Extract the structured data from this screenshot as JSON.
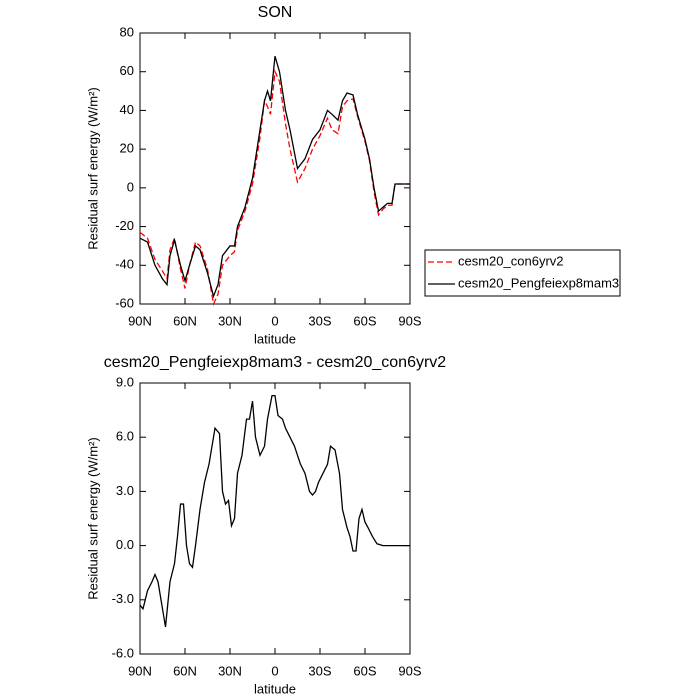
{
  "chart_data": [
    {
      "type": "line",
      "title": "SON",
      "x_label": "latitude",
      "y_label": "Residual surf energy (W/m²)",
      "x": [
        90,
        85,
        80,
        75,
        72,
        70,
        67,
        63,
        60,
        57,
        53,
        50,
        45,
        41,
        38,
        35,
        30,
        27,
        25,
        20,
        15,
        10,
        7,
        5,
        3,
        0,
        -3,
        -7,
        -10,
        -15,
        -20,
        -25,
        -30,
        -35,
        -38,
        -42,
        -45,
        -48,
        -52,
        -55,
        -60,
        -63,
        -66,
        -69,
        -72,
        -75,
        -78,
        -80,
        -85,
        -90
      ],
      "xlim": [
        90,
        -90
      ],
      "xticks": [
        {
          "value": 90,
          "label": "90N"
        },
        {
          "value": 60,
          "label": "60N"
        },
        {
          "value": 30,
          "label": "30N"
        },
        0,
        {
          "value": -30,
          "label": "30S"
        },
        {
          "value": -60,
          "label": "60S"
        },
        {
          "value": -90,
          "label": "90S"
        }
      ],
      "ylim": [
        -60,
        80
      ],
      "yticks": [
        -60,
        -40,
        -20,
        0,
        20,
        40,
        60,
        80
      ],
      "legend": "right",
      "series": [
        {
          "name": "cesm20_con6yrv2",
          "color": "#ff0000",
          "line_style": "dashed",
          "values": [
            -23,
            -26,
            -37,
            -43,
            -47,
            -32,
            -26,
            -42,
            -52,
            -40,
            -28,
            -30,
            -42,
            -60,
            -55,
            -40,
            -35,
            -33,
            -22,
            -12,
            2,
            26,
            45,
            42,
            38,
            60,
            55,
            33,
            20,
            3,
            10,
            20,
            27,
            36,
            30,
            28,
            42,
            45,
            46,
            37,
            24,
            14,
            -2,
            -14,
            -11,
            -9,
            -9,
            2,
            2,
            2
          ]
        },
        {
          "name": "cesm20_Pengfeiexp8mam3",
          "color": "#000000",
          "line_style": "solid",
          "values": [
            -26,
            -28,
            -40,
            -47,
            -50,
            -35,
            -27,
            -40,
            -48,
            -40,
            -30,
            -32,
            -44,
            -56,
            -50,
            -35,
            -30,
            -30,
            -20,
            -10,
            5,
            30,
            45,
            50,
            45,
            68,
            60,
            40,
            30,
            10,
            15,
            25,
            30,
            40,
            38,
            35,
            45,
            49,
            48,
            38,
            25,
            15,
            0,
            -12,
            -10,
            -8,
            -8,
            2,
            2,
            2
          ]
        }
      ]
    },
    {
      "type": "line",
      "title": "cesm20_Pengfeiexp8mam3 - cesm20_con6yrv2",
      "x_label": "latitude",
      "y_label": "Residual surf energy (W/m²)",
      "x": [
        90,
        88,
        85,
        82,
        80,
        78,
        75,
        73,
        70,
        67,
        65,
        63,
        61,
        59,
        57,
        55,
        53,
        50,
        47,
        44,
        40,
        37,
        35,
        33,
        31,
        29,
        27,
        25,
        22,
        19,
        17,
        15,
        13,
        10,
        7,
        5,
        2,
        0,
        -2,
        -5,
        -7,
        -10,
        -13,
        -15,
        -17,
        -20,
        -23,
        -25,
        -27,
        -29,
        -32,
        -35,
        -37,
        -40,
        -43,
        -45,
        -48,
        -50,
        -52,
        -54,
        -56,
        -58,
        -60,
        -62,
        -65,
        -68,
        -72,
        -76,
        -80,
        -85,
        -90
      ],
      "xlim": [
        90,
        -90
      ],
      "xticks": [
        {
          "value": 90,
          "label": "90N"
        },
        {
          "value": 60,
          "label": "60N"
        },
        {
          "value": 30,
          "label": "30N"
        },
        0,
        {
          "value": -30,
          "label": "30S"
        },
        {
          "value": -60,
          "label": "60S"
        },
        {
          "value": -90,
          "label": "90S"
        }
      ],
      "ylim": [
        -6,
        9
      ],
      "yticks": [
        {
          "value": -6,
          "label": "-6.0"
        },
        {
          "value": -3,
          "label": "-3.0"
        },
        {
          "value": 0,
          "label": "0.0"
        },
        {
          "value": 3,
          "label": "3.0"
        },
        {
          "value": 6,
          "label": "6.0"
        },
        {
          "value": 9,
          "label": "9.0"
        }
      ],
      "series": [
        {
          "color": "#000000",
          "line_style": "solid",
          "values": [
            -3.3,
            -3.5,
            -2.5,
            -2,
            -1.6,
            -2,
            -3.5,
            -4.5,
            -2,
            -1,
            0.5,
            2.3,
            2.3,
            0,
            -1,
            -1.2,
            0,
            2,
            3.5,
            4.5,
            6.5,
            6.2,
            3,
            2.3,
            2.5,
            1.1,
            1.5,
            4,
            5,
            7,
            7,
            8,
            6,
            5,
            5.5,
            7,
            8.3,
            8.3,
            7.2,
            7,
            6.5,
            6,
            5.5,
            5,
            4.5,
            4,
            3,
            2.8,
            3,
            3.5,
            4,
            4.5,
            5.5,
            5.3,
            4,
            2,
            1,
            0.5,
            -0.3,
            -0.3,
            1.5,
            2,
            1.3,
            1,
            0.5,
            0.1,
            0,
            0,
            0,
            0,
            0
          ]
        }
      ]
    }
  ]
}
